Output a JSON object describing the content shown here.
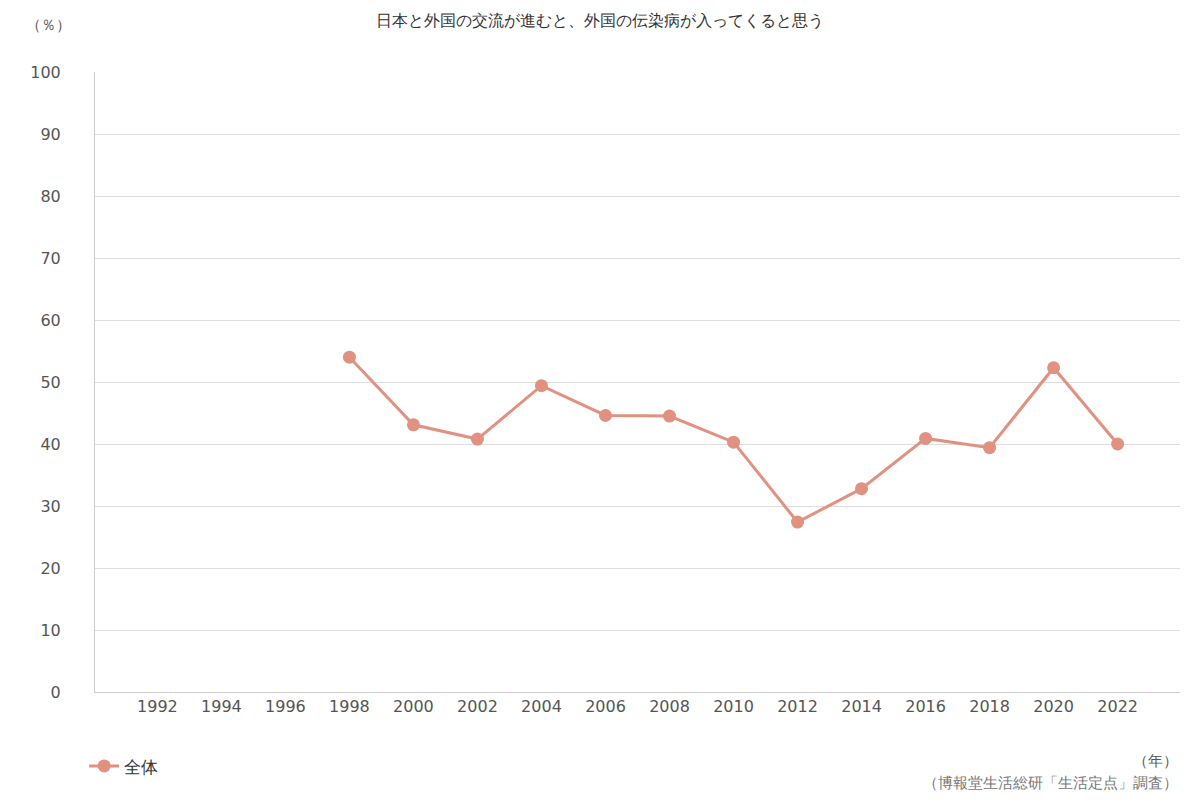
{
  "chart_data": {
    "type": "line",
    "title": "日本と外国の交流が進むと、外国の伝染病が入ってくると思う",
    "y_axis_label": "（％）",
    "x_axis_label": "（年）",
    "source": "（博報堂生活総研「生活定点」調査）",
    "categories": [
      "1992",
      "1994",
      "1996",
      "1998",
      "2000",
      "2002",
      "2004",
      "2006",
      "2008",
      "2010",
      "2012",
      "2014",
      "2016",
      "2018",
      "2020",
      "2022"
    ],
    "series": [
      {
        "name": "全体",
        "color": "#e0917f",
        "marker": "circle",
        "line_style": "solid",
        "values": [
          null,
          null,
          null,
          54.0,
          43.1,
          40.8,
          49.4,
          44.6,
          44.5,
          40.3,
          27.4,
          32.8,
          40.9,
          39.4,
          52.3,
          40.0
        ]
      }
    ],
    "ylim": [
      0,
      100
    ],
    "yticks": [
      0,
      10,
      20,
      30,
      40,
      50,
      60,
      70,
      80,
      90,
      100
    ],
    "grid": true,
    "legend": "bottom left"
  }
}
